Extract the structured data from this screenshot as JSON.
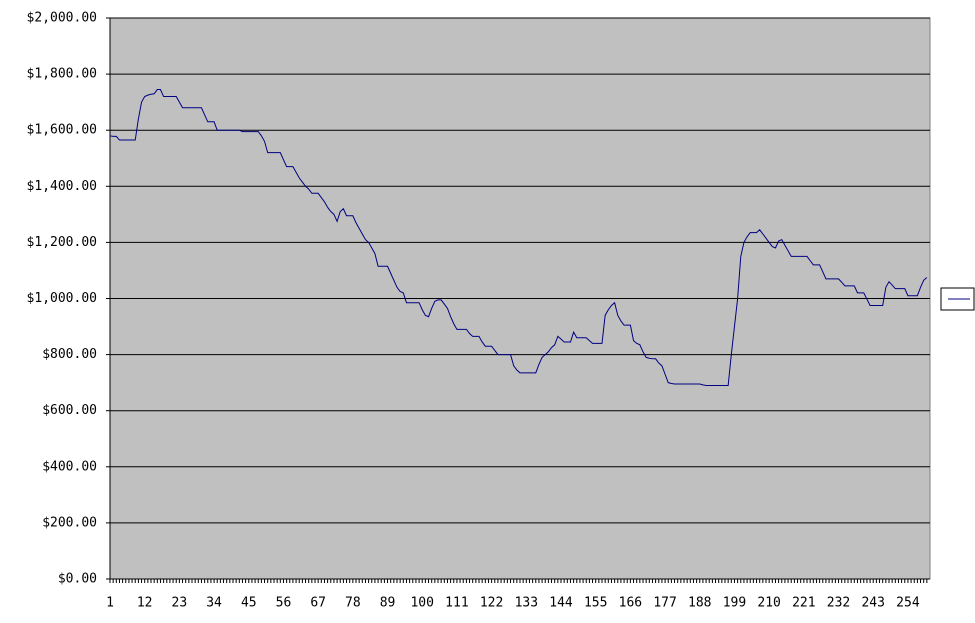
{
  "chart_data": {
    "type": "line",
    "x": [
      1,
      2,
      3,
      4,
      5,
      6,
      7,
      8,
      9,
      10,
      11,
      12,
      13,
      14,
      15,
      16,
      17,
      18,
      19,
      20,
      21,
      22,
      23,
      24,
      25,
      26,
      27,
      28,
      29,
      30,
      31,
      32,
      33,
      34,
      35,
      36,
      37,
      38,
      39,
      40,
      41,
      42,
      43,
      44,
      45,
      46,
      47,
      48,
      49,
      50,
      51,
      52,
      53,
      54,
      55,
      56,
      57,
      58,
      59,
      60,
      61,
      62,
      63,
      64,
      65,
      66,
      67,
      68,
      69,
      70,
      71,
      72,
      73,
      74,
      75,
      76,
      77,
      78,
      79,
      80,
      81,
      82,
      83,
      84,
      85,
      86,
      87,
      88,
      89,
      90,
      91,
      92,
      93,
      94,
      95,
      96,
      97,
      98,
      99,
      100,
      101,
      102,
      103,
      104,
      105,
      106,
      107,
      108,
      109,
      110,
      111,
      112,
      113,
      114,
      115,
      116,
      117,
      118,
      119,
      120,
      121,
      122,
      123,
      124,
      125,
      126,
      127,
      128,
      129,
      130,
      131,
      132,
      133,
      134,
      135,
      136,
      137,
      138,
      139,
      140,
      141,
      142,
      143,
      144,
      145,
      146,
      147,
      148,
      149,
      150,
      151,
      152,
      153,
      154,
      155,
      156,
      157,
      158,
      159,
      160,
      161,
      162,
      163,
      164,
      165,
      166,
      167,
      168,
      169,
      170,
      171,
      172,
      173,
      174,
      175,
      176,
      177,
      178,
      179,
      180,
      181,
      182,
      183,
      184,
      185,
      186,
      187,
      188,
      189,
      190,
      191,
      192,
      193,
      194,
      195,
      196,
      197,
      198,
      199,
      200,
      201,
      202,
      203,
      204,
      205,
      206,
      207,
      208,
      209,
      210,
      211,
      212,
      213,
      214,
      215,
      216,
      217,
      218,
      219,
      220,
      221,
      222,
      223,
      224,
      225,
      226,
      227,
      228,
      229,
      230,
      231,
      232,
      233,
      234,
      235,
      236,
      237,
      238,
      239,
      240,
      241,
      242,
      243,
      244,
      245,
      246,
      247,
      248,
      249,
      250,
      251,
      252,
      253,
      254,
      255,
      256,
      257,
      258,
      259,
      260
    ],
    "series": [
      {
        "color": "#000080",
        "values": [
          1580,
          1578,
          1578,
          1565,
          1565,
          1565,
          1565,
          1565,
          1565,
          1640,
          1700,
          1720,
          1725,
          1728,
          1730,
          1745,
          1745,
          1720,
          1720,
          1720,
          1720,
          1720,
          1700,
          1680,
          1680,
          1680,
          1680,
          1680,
          1680,
          1680,
          1655,
          1630,
          1630,
          1630,
          1600,
          1600,
          1600,
          1600,
          1600,
          1600,
          1600,
          1600,
          1595,
          1595,
          1595,
          1595,
          1595,
          1595,
          1580,
          1560,
          1520,
          1520,
          1520,
          1520,
          1520,
          1495,
          1470,
          1470,
          1470,
          1450,
          1430,
          1415,
          1400,
          1390,
          1375,
          1375,
          1375,
          1360,
          1345,
          1325,
          1310,
          1300,
          1275,
          1310,
          1320,
          1295,
          1295,
          1295,
          1270,
          1250,
          1230,
          1210,
          1200,
          1180,
          1160,
          1115,
          1115,
          1115,
          1115,
          1090,
          1065,
          1040,
          1025,
          1020,
          985,
          985,
          985,
          985,
          985,
          960,
          940,
          935,
          965,
          990,
          995,
          995,
          980,
          965,
          935,
          910,
          890,
          890,
          890,
          890,
          875,
          865,
          865,
          865,
          845,
          830,
          830,
          830,
          815,
          800,
          800,
          800,
          800,
          800,
          760,
          745,
          735,
          735,
          735,
          735,
          735,
          735,
          765,
          790,
          800,
          810,
          825,
          835,
          865,
          855,
          845,
          845,
          845,
          880,
          860,
          860,
          860,
          860,
          850,
          840,
          840,
          840,
          840,
          940,
          960,
          975,
          985,
          940,
          920,
          905,
          905,
          905,
          850,
          840,
          835,
          810,
          790,
          787,
          785,
          785,
          770,
          760,
          730,
          700,
          697,
          695,
          695,
          695,
          695,
          695,
          695,
          695,
          695,
          695,
          692,
          690,
          690,
          690,
          690,
          690,
          690,
          690,
          690,
          800,
          900,
          1000,
          1150,
          1200,
          1220,
          1235,
          1235,
          1235,
          1245,
          1230,
          1215,
          1200,
          1185,
          1180,
          1205,
          1210,
          1190,
          1170,
          1150,
          1150,
          1150,
          1150,
          1150,
          1150,
          1135,
          1120,
          1120,
          1120,
          1095,
          1070,
          1070,
          1070,
          1070,
          1070,
          1058,
          1045,
          1045,
          1045,
          1045,
          1020,
          1020,
          1020,
          998,
          975,
          975,
          975,
          975,
          975,
          1040,
          1060,
          1048,
          1035,
          1035,
          1035,
          1035,
          1010,
          1010,
          1010,
          1010,
          1040,
          1065,
          1075
        ]
      }
    ],
    "xlim": [
      1,
      261
    ],
    "xticks": [
      1,
      12,
      23,
      34,
      45,
      56,
      67,
      78,
      89,
      100,
      111,
      122,
      133,
      144,
      155,
      166,
      177,
      188,
      199,
      210,
      221,
      232,
      243,
      254
    ],
    "ylim": [
      0,
      2000
    ],
    "yticks": [
      {
        "value": 0,
        "label": "$0.00"
      },
      {
        "value": 200,
        "label": "$200.00"
      },
      {
        "value": 400,
        "label": "$400.00"
      },
      {
        "value": 600,
        "label": "$600.00"
      },
      {
        "value": 800,
        "label": "$800.00"
      },
      {
        "value": 1000,
        "label": "$1,000.00"
      },
      {
        "value": 1200,
        "label": "$1,200.00"
      },
      {
        "value": 1400,
        "label": "$1,400.00"
      },
      {
        "value": 1600,
        "label": "$1,600.00"
      },
      {
        "value": 1800,
        "label": "$1,800.00"
      },
      {
        "value": 2000,
        "label": "$2,000.00"
      }
    ],
    "grid": true,
    "plot_color": "#c0c0c0",
    "legend": "right"
  }
}
